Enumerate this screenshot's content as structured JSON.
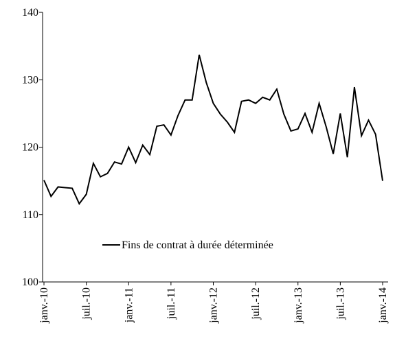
{
  "chart_data": {
    "type": "line",
    "categories": [
      "janv.-10",
      null,
      null,
      null,
      null,
      null,
      "juil.-10",
      null,
      null,
      null,
      null,
      null,
      "janv.-11",
      null,
      null,
      null,
      null,
      null,
      "juil.-11",
      null,
      null,
      null,
      null,
      null,
      "janv.-12",
      null,
      null,
      null,
      null,
      null,
      "juil.-12",
      null,
      null,
      null,
      null,
      null,
      "janv.-13",
      null,
      null,
      null,
      null,
      null,
      "juil.-13",
      null,
      null,
      null,
      null,
      null,
      "janv.-14"
    ],
    "series": [
      {
        "name": "Fins de contrat à durée déterminée",
        "color": "#000000",
        "values": [
          115.1,
          112.7,
          114.1,
          114.0,
          113.9,
          111.6,
          113.0,
          117.6,
          115.6,
          116.1,
          117.8,
          117.5,
          120.0,
          117.7,
          120.3,
          118.9,
          123.1,
          123.3,
          121.8,
          124.7,
          127.0,
          127.0,
          133.7,
          129.6,
          126.5,
          124.9,
          123.7,
          122.2,
          126.8,
          127.0,
          126.5,
          127.4,
          127.0,
          128.6,
          124.9,
          122.4,
          122.7,
          125.0,
          122.2,
          126.5,
          123.0,
          119.0,
          125.0,
          118.5,
          128.9,
          121.7,
          124.0,
          121.9,
          115.0
        ]
      }
    ],
    "ylim": [
      100,
      140
    ],
    "yticks": [
      100,
      110,
      120,
      130,
      140
    ],
    "grid": false,
    "legend": "bottom"
  }
}
